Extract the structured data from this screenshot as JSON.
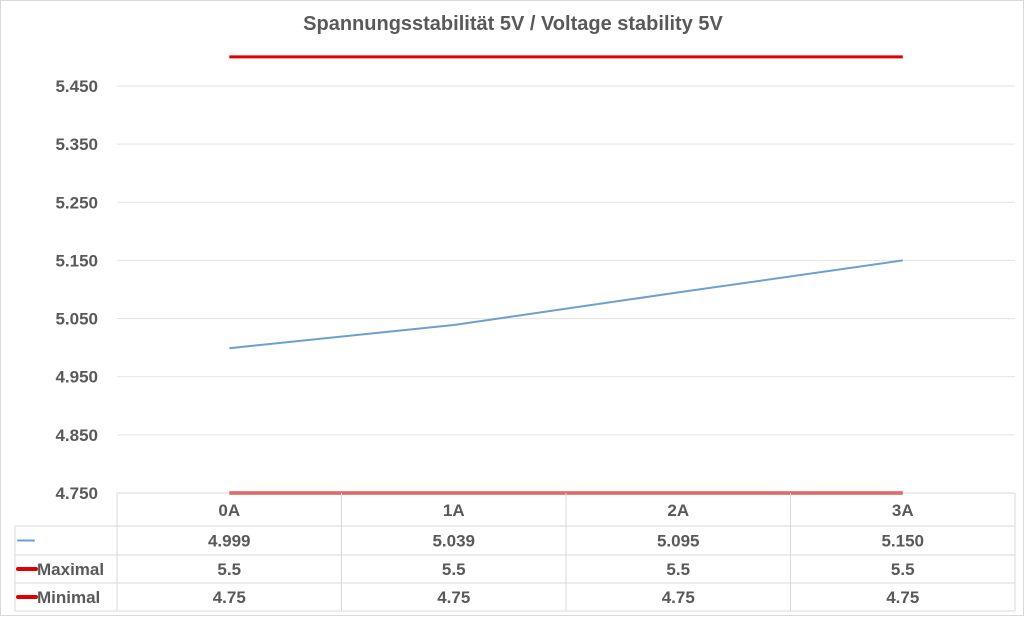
{
  "chart_data": {
    "type": "line",
    "title": "Spannungsstabilität 5V / Voltage stability 5V",
    "categories": [
      "0A",
      "1A",
      "2A",
      "3A"
    ],
    "series": [
      {
        "name": "",
        "values": [
          4.999,
          5.039,
          5.095,
          5.15
        ],
        "display": [
          "4.999",
          "5.039",
          "5.095",
          "5.150"
        ],
        "color": "#6ca0cf"
      },
      {
        "name": "Maximal",
        "values": [
          5.5,
          5.5,
          5.5,
          5.5
        ],
        "display": [
          "5.5",
          "5.5",
          "5.5",
          "5.5"
        ],
        "color": "#e00000"
      },
      {
        "name": "Minimal",
        "values": [
          4.75,
          4.75,
          4.75,
          4.75
        ],
        "display": [
          "4.75",
          "4.75",
          "4.75",
          "4.75"
        ],
        "color": "#e00000"
      }
    ],
    "yticks": [
      "4.750",
      "4.850",
      "4.950",
      "5.050",
      "5.150",
      "5.250",
      "5.350",
      "5.450"
    ],
    "ylim": [
      4.75,
      5.45
    ],
    "grid": true,
    "legend": "data-table"
  }
}
